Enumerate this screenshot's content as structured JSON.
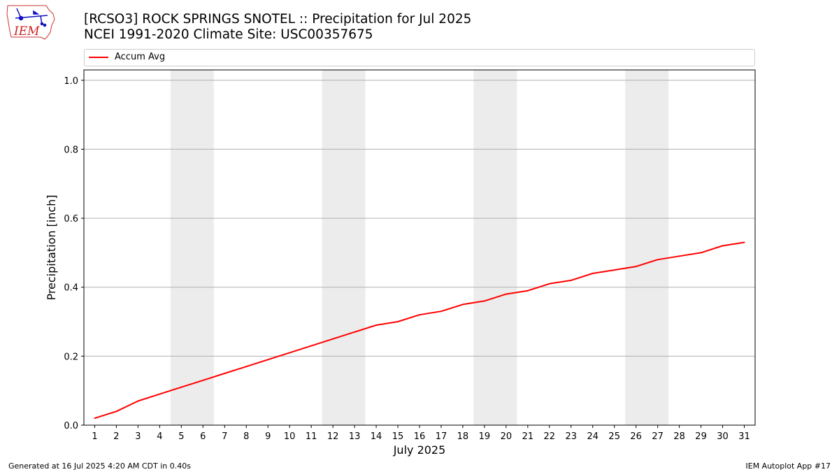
{
  "header": {
    "title_line1": "[RCSO3] ROCK SPRINGS SNOTEL :: Precipitation for Jul 2025",
    "title_line2": "NCEI 1991-2020 Climate Site: USC00357675",
    "logo_text": "IEM"
  },
  "footer": {
    "generated": "Generated at 16 Jul 2025 4:20 AM CDT in 0.40s",
    "app": "IEM Autoplot App #17"
  },
  "colors": {
    "series": "#ff0000",
    "weekend_band": "#ececec",
    "grid": "#b0b0b0"
  },
  "chart_data": {
    "type": "line",
    "title": "[RCSO3] ROCK SPRINGS SNOTEL :: Precipitation for Jul 2025",
    "subtitle": "NCEI 1991-2020 Climate Site: USC00357675",
    "xlabel": "July 2025",
    "ylabel": "Precipitation [inch]",
    "xlim": [
      0.5,
      31.5
    ],
    "ylim": [
      0,
      1.03
    ],
    "yticks": [
      0.0,
      0.2,
      0.4,
      0.6,
      0.8,
      1.0
    ],
    "ytick_labels": [
      "0.0",
      "0.2",
      "0.4",
      "0.6",
      "0.8",
      "1.0"
    ],
    "x": [
      1,
      2,
      3,
      4,
      5,
      6,
      7,
      8,
      9,
      10,
      11,
      12,
      13,
      14,
      15,
      16,
      17,
      18,
      19,
      20,
      21,
      22,
      23,
      24,
      25,
      26,
      27,
      28,
      29,
      30,
      31
    ],
    "xtick_labels": [
      "1",
      "2",
      "3",
      "4",
      "5",
      "6",
      "7",
      "8",
      "9",
      "10",
      "11",
      "12",
      "13",
      "14",
      "15",
      "16",
      "17",
      "18",
      "19",
      "20",
      "21",
      "22",
      "23",
      "24",
      "25",
      "26",
      "27",
      "28",
      "29",
      "30",
      "31"
    ],
    "grid": "y",
    "legend_position": "top",
    "series": [
      {
        "name": "Accum Avg",
        "color": "#ff0000",
        "values": [
          0.02,
          0.04,
          0.07,
          0.09,
          0.11,
          0.13,
          0.15,
          0.17,
          0.19,
          0.21,
          0.23,
          0.25,
          0.27,
          0.29,
          0.3,
          0.32,
          0.33,
          0.35,
          0.36,
          0.38,
          0.39,
          0.41,
          0.42,
          0.44,
          0.45,
          0.46,
          0.48,
          0.49,
          0.5,
          0.52,
          0.53
        ]
      }
    ],
    "weekend_bands": [
      [
        5,
        6
      ],
      [
        12,
        13
      ],
      [
        19,
        20
      ],
      [
        26,
        27
      ]
    ]
  }
}
